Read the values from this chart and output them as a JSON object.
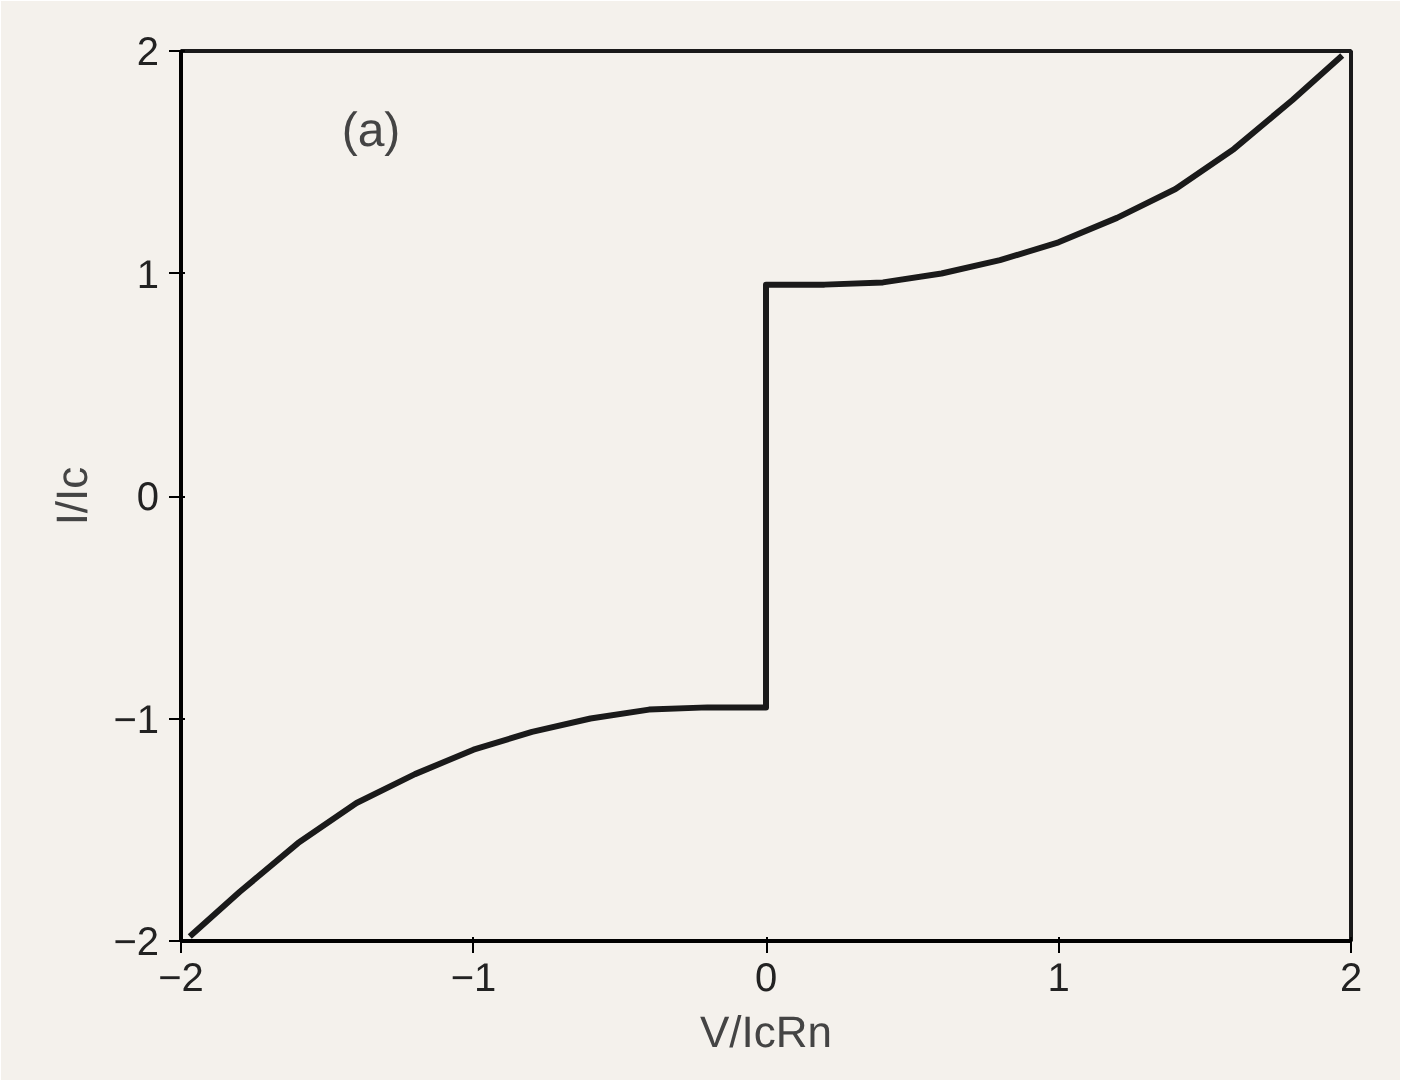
{
  "chart_data": {
    "type": "line",
    "xlabel": "V/IcRn",
    "ylabel": "I/Ic",
    "annotations": [
      "(a)"
    ],
    "x": [
      -1.97,
      -1.8,
      -1.6,
      -1.4,
      -1.2,
      -1.0,
      -0.8,
      -0.6,
      -0.4,
      -0.2,
      0,
      0,
      0.2,
      0.4,
      0.6,
      0.8,
      1.0,
      1.2,
      1.4,
      1.6,
      1.8,
      1.97
    ],
    "series": [
      {
        "color": "#1a1a1a",
        "values": [
          -1.98,
          -1.78,
          -1.56,
          -1.38,
          -1.25,
          -1.14,
          -1.06,
          -1.0,
          -0.96,
          -0.95,
          -0.95,
          0.95,
          0.95,
          0.96,
          1.0,
          1.06,
          1.14,
          1.25,
          1.38,
          1.56,
          1.78,
          1.98
        ]
      }
    ],
    "xlim": [
      -2,
      2
    ],
    "ylim": [
      -2,
      2
    ],
    "xticks": [
      -2,
      -1,
      0,
      1,
      2
    ],
    "yticks": [
      -2,
      -1,
      0,
      1,
      2
    ],
    "grid": false,
    "marker": "none",
    "line_style": "solid"
  }
}
